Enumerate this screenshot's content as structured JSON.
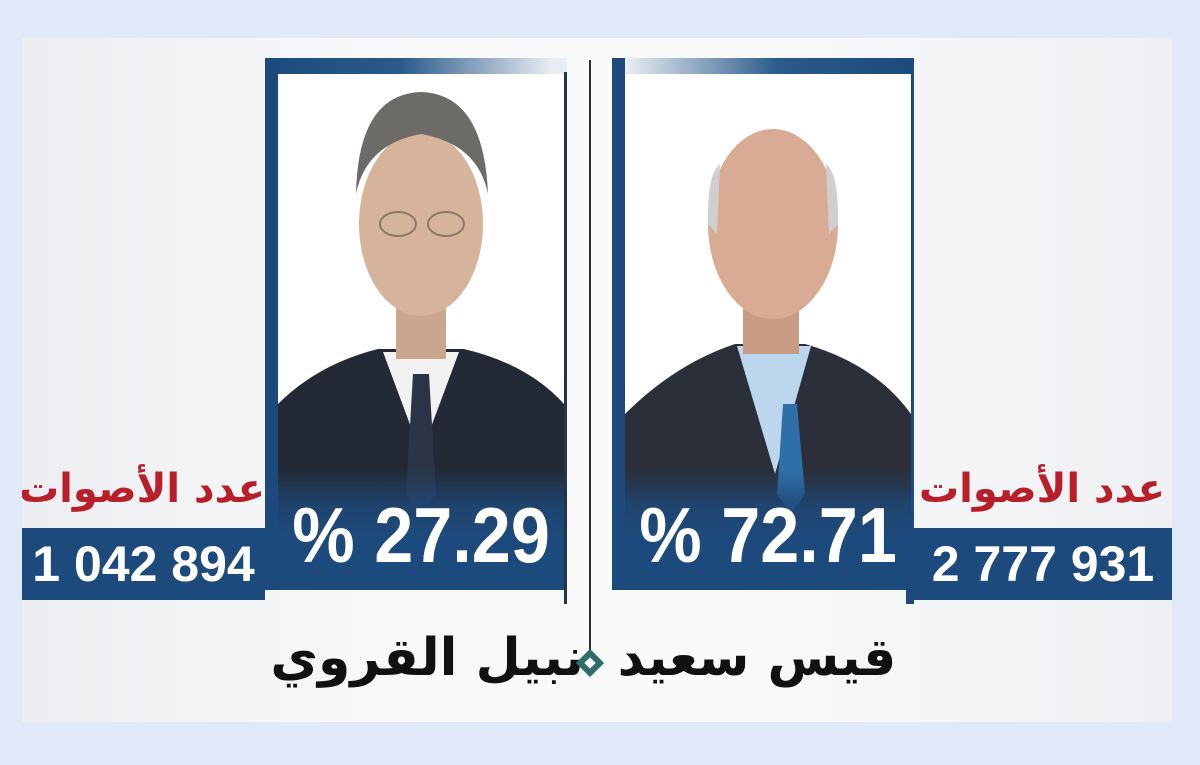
{
  "colors": {
    "frame_blue": "#1d4a7c",
    "votes_label_red": "#b81f2a",
    "diamond_teal": "#2f6d68",
    "background": "#dfe9f8"
  },
  "candidates": [
    {
      "name": "نبيل القروي",
      "percent": "% 27.29",
      "votes_label": "عدد الأصوات",
      "votes": "1 042 894"
    },
    {
      "name": "قيس سعيد",
      "percent": "% 72.71",
      "votes_label": "عدد الأصوات",
      "votes": "2 777 931"
    }
  ],
  "separator_icon": "diamond-icon"
}
